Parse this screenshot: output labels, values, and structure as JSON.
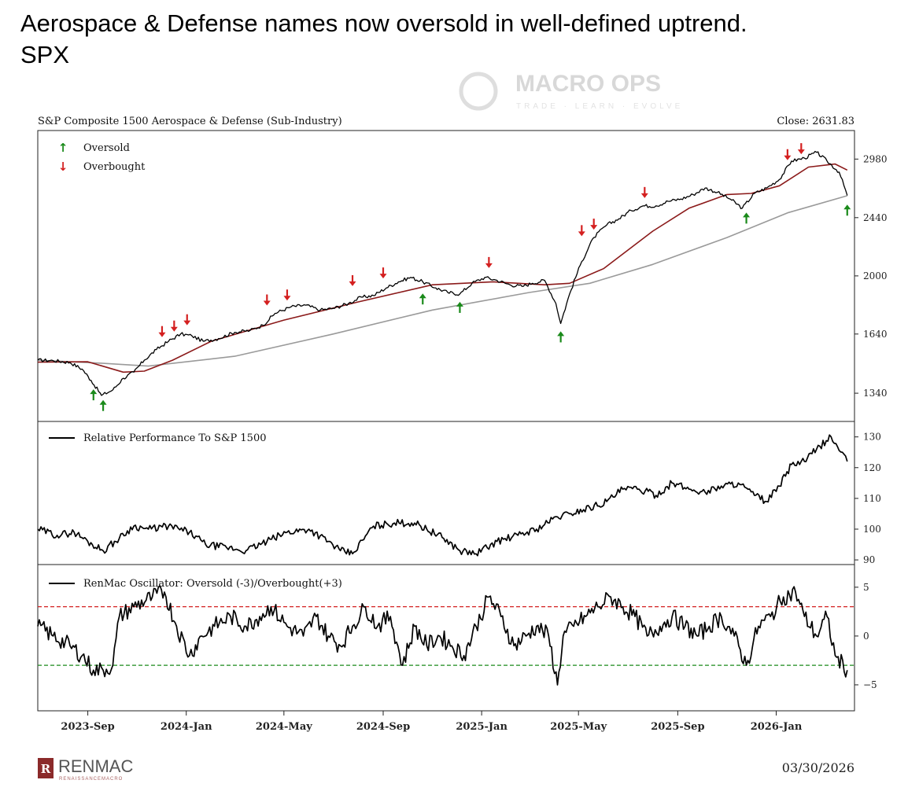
{
  "headline": {
    "line1": "Aerospace & Defense names now oversold in well-defined uptrend.",
    "line2": "SPX"
  },
  "watermark": {
    "brand": "MACRO OPS",
    "tagline": "TRADE · LEARN · EVOLVE"
  },
  "footer": {
    "brand": "RENMAC",
    "brand_sub": "RENAISSANCEMACRO",
    "date": "03/30/2026"
  },
  "colors": {
    "price": "#000000",
    "ma_short": "#8b1a1a",
    "ma_long": "#9a9a9a",
    "oversold": "#1a8a1a",
    "overbought": "#d42020",
    "ob_line": "#d42020",
    "os_line": "#1a8a1a"
  },
  "chart_data": [
    {
      "type": "line",
      "title": "S&P Composite 1500 Aerospace & Defense (Sub-Industry)",
      "close_label": "Close: 2631.83",
      "legend": [
        "Oversold",
        "Overbought"
      ],
      "y_scale": "log",
      "ylim": [
        1230,
        3250
      ],
      "yticks": [
        1340,
        1640,
        2000,
        2440,
        2980
      ],
      "xlim": [
        "2023-07-01",
        "2026-04-08"
      ],
      "series": [
        {
          "x": [
            "2023-07-01",
            "2023-07-20",
            "2023-08-10",
            "2023-08-25",
            "2023-09-05",
            "2023-09-18",
            "2023-10-02",
            "2023-10-15",
            "2023-10-28",
            "2023-11-10",
            "2023-11-25",
            "2023-12-10",
            "2023-12-25",
            "2024-01-08",
            "2024-01-22",
            "2024-02-10",
            "2024-03-01",
            "2024-03-20",
            "2024-04-05",
            "2024-04-20",
            "2024-05-10",
            "2024-05-28",
            "2024-06-15",
            "2024-07-01",
            "2024-07-20",
            "2024-08-05",
            "2024-08-20",
            "2024-09-05",
            "2024-09-20",
            "2024-10-05",
            "2024-10-20",
            "2024-11-05",
            "2024-11-20",
            "2024-12-05",
            "2024-12-20",
            "2025-01-05",
            "2025-01-20",
            "2025-02-05",
            "2025-02-20",
            "2025-03-05",
            "2025-03-20",
            "2025-04-03",
            "2025-04-09",
            "2025-04-20",
            "2025-05-05",
            "2025-05-20",
            "2025-06-05",
            "2025-06-20",
            "2025-07-05",
            "2025-07-20",
            "2025-08-05",
            "2025-08-20",
            "2025-09-05",
            "2025-09-20",
            "2025-10-05",
            "2025-10-20",
            "2025-11-05",
            "2025-11-20",
            "2025-12-05",
            "2025-12-20",
            "2026-01-05",
            "2026-01-20",
            "2026-02-05",
            "2026-02-20",
            "2026-03-05",
            "2026-03-20",
            "2026-03-30"
          ],
          "y": [
            1500,
            1498,
            1488,
            1455,
            1400,
            1330,
            1355,
            1410,
            1440,
            1500,
            1555,
            1600,
            1640,
            1630,
            1600,
            1615,
            1650,
            1660,
            1690,
            1760,
            1800,
            1810,
            1780,
            1790,
            1820,
            1860,
            1870,
            1920,
            1960,
            1990,
            1960,
            1920,
            1890,
            1880,
            1950,
            1990,
            1970,
            1940,
            1930,
            1950,
            1970,
            1820,
            1700,
            1880,
            2100,
            2280,
            2380,
            2430,
            2500,
            2540,
            2540,
            2580,
            2600,
            2640,
            2700,
            2660,
            2600,
            2520,
            2650,
            2700,
            2780,
            2960,
            2990,
            3050,
            2960,
            2850,
            2631.83
          ]
        },
        {
          "x": [
            "2023-07-01",
            "2023-09-01",
            "2023-10-15",
            "2023-11-10",
            "2023-12-15",
            "2024-02-01",
            "2024-05-01",
            "2024-08-01",
            "2024-11-01",
            "2025-01-15",
            "2025-03-20",
            "2025-04-20",
            "2025-06-01",
            "2025-08-01",
            "2025-09-15",
            "2025-11-01",
            "2025-12-01",
            "2026-01-05",
            "2026-02-10",
            "2026-03-15",
            "2026-03-30"
          ],
          "y": [
            1490,
            1492,
            1440,
            1445,
            1500,
            1600,
            1720,
            1830,
            1940,
            1960,
            1940,
            1950,
            2050,
            2330,
            2520,
            2640,
            2650,
            2720,
            2900,
            2930,
            2870
          ]
        },
        {
          "x": [
            "2023-07-01",
            "2023-09-15",
            "2023-11-15",
            "2024-03-01",
            "2024-07-01",
            "2024-11-01",
            "2025-03-01",
            "2025-05-15",
            "2025-08-01",
            "2025-11-01",
            "2026-01-15",
            "2026-03-30"
          ],
          "y": [
            1500,
            1485,
            1470,
            1520,
            1640,
            1780,
            1890,
            1950,
            2080,
            2280,
            2480,
            2630
          ]
        }
      ],
      "oversold_signals": [
        {
          "x": "2023-09-08",
          "y": 1395
        },
        {
          "x": "2023-09-20",
          "y": 1345
        },
        {
          "x": "2024-10-20",
          "y": 1935
        },
        {
          "x": "2024-12-05",
          "y": 1880
        },
        {
          "x": "2025-04-09",
          "y": 1700
        },
        {
          "x": "2025-11-25",
          "y": 2550
        },
        {
          "x": "2026-03-30",
          "y": 2620
        }
      ],
      "overbought_signals": [
        {
          "x": "2023-12-02",
          "y": 1580
        },
        {
          "x": "2023-12-17",
          "y": 1610
        },
        {
          "x": "2024-01-02",
          "y": 1645
        },
        {
          "x": "2024-04-10",
          "y": 1760
        },
        {
          "x": "2024-05-05",
          "y": 1790
        },
        {
          "x": "2024-07-25",
          "y": 1880
        },
        {
          "x": "2024-09-01",
          "y": 1930
        },
        {
          "x": "2025-01-10",
          "y": 2000
        },
        {
          "x": "2025-05-05",
          "y": 2230
        },
        {
          "x": "2025-05-20",
          "y": 2280
        },
        {
          "x": "2025-07-22",
          "y": 2540
        },
        {
          "x": "2026-01-15",
          "y": 2890
        },
        {
          "x": "2026-02-01",
          "y": 2950
        }
      ]
    },
    {
      "type": "line",
      "legend": [
        "Relative Performance To S&P 1500"
      ],
      "ylim": [
        89,
        134
      ],
      "yticks": [
        90,
        100,
        110,
        120,
        130
      ],
      "series": [
        {
          "x": [
            "2023-07-01",
            "2023-07-25",
            "2023-08-15",
            "2023-09-01",
            "2023-09-20",
            "2023-10-10",
            "2023-10-28",
            "2023-11-15",
            "2023-12-10",
            "2024-01-05",
            "2024-01-25",
            "2024-02-20",
            "2024-03-15",
            "2024-04-10",
            "2024-05-05",
            "2024-06-01",
            "2024-06-25",
            "2024-07-10",
            "2024-07-25",
            "2024-08-20",
            "2024-09-15",
            "2024-10-10",
            "2024-10-25",
            "2024-11-15",
            "2024-12-05",
            "2024-12-25",
            "2025-01-20",
            "2025-02-15",
            "2025-03-10",
            "2025-04-05",
            "2025-04-20",
            "2025-05-15",
            "2025-06-05",
            "2025-06-25",
            "2025-07-15",
            "2025-08-05",
            "2025-08-25",
            "2025-09-15",
            "2025-10-05",
            "2025-10-25",
            "2025-11-15",
            "2025-12-05",
            "2025-12-20",
            "2026-01-05",
            "2026-01-20",
            "2026-02-05",
            "2026-02-20",
            "2026-03-10",
            "2026-03-30"
          ],
          "y": [
            100,
            98,
            99,
            96,
            93,
            97,
            101,
            100,
            101,
            99,
            95,
            94,
            93,
            96,
            99,
            100,
            96,
            93,
            92,
            101,
            102,
            102,
            100,
            97,
            93,
            92,
            96,
            98,
            100,
            104,
            105,
            107,
            109,
            113,
            113,
            111,
            115,
            113,
            112,
            114,
            115,
            111,
            109,
            114,
            121,
            122,
            126,
            130,
            122
          ]
        }
      ]
    },
    {
      "type": "line",
      "legend": [
        "RenMac Oscillator: Oversold (-3)/Overbought(+3)"
      ],
      "ylim": [
        -7.5,
        7
      ],
      "yticks": [
        -5,
        0,
        5
      ],
      "hlines": [
        {
          "y": 3,
          "color": "red",
          "style": "dashed"
        },
        {
          "y": -3,
          "color": "green",
          "style": "dashed"
        }
      ],
      "series": [
        {
          "x": [
            "2023-07-01",
            "2023-07-20",
            "2023-08-10",
            "2023-08-25",
            "2023-09-08",
            "2023-09-20",
            "2023-10-02",
            "2023-10-10",
            "2023-10-28",
            "2023-11-20",
            "2023-12-05",
            "2023-12-20",
            "2024-01-05",
            "2024-01-20",
            "2024-02-05",
            "2024-02-25",
            "2024-03-15",
            "2024-04-01",
            "2024-04-15",
            "2024-05-05",
            "2024-05-25",
            "2024-06-10",
            "2024-06-25",
            "2024-07-10",
            "2024-07-25",
            "2024-08-10",
            "2024-08-25",
            "2024-09-10",
            "2024-09-25",
            "2024-10-10",
            "2024-10-25",
            "2024-11-10",
            "2024-11-25",
            "2024-12-10",
            "2024-12-25",
            "2025-01-10",
            "2025-01-25",
            "2025-02-10",
            "2025-02-25",
            "2025-03-10",
            "2025-03-25",
            "2025-04-05",
            "2025-04-12",
            "2025-04-25",
            "2025-05-10",
            "2025-05-25",
            "2025-06-10",
            "2025-06-25",
            "2025-07-10",
            "2025-07-25",
            "2025-08-10",
            "2025-08-25",
            "2025-09-10",
            "2025-09-25",
            "2025-10-10",
            "2025-10-25",
            "2025-11-10",
            "2025-11-25",
            "2025-12-10",
            "2025-12-25",
            "2026-01-10",
            "2026-01-25",
            "2026-02-05",
            "2026-02-20",
            "2026-03-05",
            "2026-03-15",
            "2026-03-30"
          ],
          "y": [
            1,
            0,
            -1,
            -2,
            -3.5,
            -3.5,
            -3,
            2,
            3,
            4,
            4.5,
            1,
            -2,
            0,
            1,
            2,
            1,
            2,
            3,
            1,
            0,
            2,
            0,
            -1,
            1,
            3,
            1,
            2,
            -3,
            1,
            -1,
            0,
            -1,
            -2,
            1,
            4,
            2,
            -1,
            0,
            1,
            0,
            -5,
            0,
            1,
            2,
            3,
            4,
            3,
            2,
            0,
            1,
            2,
            1,
            0,
            1,
            2,
            0,
            -3,
            1,
            2,
            4,
            4.5,
            2,
            0,
            2,
            -2,
            -3.5
          ]
        }
      ]
    },
    {
      "type": "axis",
      "xticks": [
        "2023-Sep",
        "2024-Jan",
        "2024-May",
        "2024-Sep",
        "2025-Jan",
        "2025-May",
        "2025-Sep",
        "2026-Jan"
      ]
    }
  ]
}
